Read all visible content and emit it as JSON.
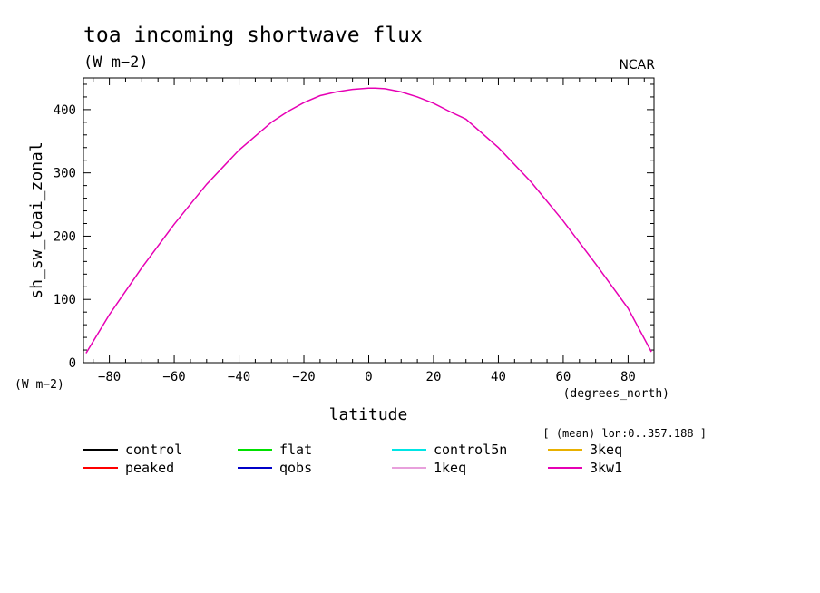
{
  "chart_data": {
    "type": "line",
    "title": "toa incoming shortwave flux",
    "subtitle": "(W m−2)",
    "organization": "NCAR",
    "xlabel": "latitude",
    "xunits": "(degrees_north)",
    "ylabel": "sh_sw_toai_zonal",
    "yunits": "(W m−2)",
    "note": "[ (mean) lon:0..357.188 ]",
    "xlim": [
      -88,
      88
    ],
    "ylim": [
      0,
      450
    ],
    "xticks": [
      -80,
      -60,
      -40,
      -20,
      0,
      20,
      40,
      60,
      80
    ],
    "xtick_labels": [
      "−80",
      "−60",
      "−40",
      "−20",
      "0",
      "20",
      "40",
      "60",
      "80"
    ],
    "yticks": [
      0,
      100,
      200,
      300,
      400
    ],
    "ytick_labels": [
      "0",
      "100",
      "200",
      "300",
      "400"
    ],
    "grid": false,
    "legend_placement": "bottom",
    "x": [
      -87.2,
      -80,
      -70,
      -60,
      -50,
      -40,
      -30,
      -25,
      -20,
      -15,
      -10,
      -5,
      0,
      2,
      5,
      10,
      15,
      20,
      25,
      30,
      40,
      50,
      60,
      70,
      80,
      87.2
    ],
    "series": [
      {
        "name": "control",
        "color": "#000000",
        "values": null
      },
      {
        "name": "peaked",
        "color": "#ff0000",
        "values": null
      },
      {
        "name": "flat",
        "color": "#00e000",
        "values": null
      },
      {
        "name": "qobs",
        "color": "#0000c8",
        "values": null
      },
      {
        "name": "control5n",
        "color": "#00e5e5",
        "values": null
      },
      {
        "name": "1keq",
        "color": "#e8a0dc",
        "values": null
      },
      {
        "name": "3keq",
        "color": "#e8b000",
        "values": null
      },
      {
        "name": "3kw1",
        "color": "#e600b4",
        "values": [
          15,
          76,
          150,
          219,
          282,
          336,
          380,
          397,
          411,
          422,
          428,
          432,
          434,
          434,
          433,
          428,
          420,
          410,
          397,
          385,
          340,
          286,
          224,
          156,
          86,
          17
        ]
      }
    ]
  }
}
